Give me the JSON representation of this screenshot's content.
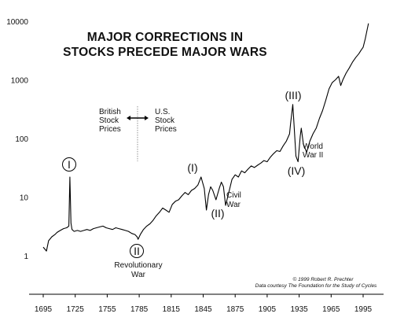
{
  "chart_data": {
    "type": "line",
    "title_lines": [
      "MAJOR CORRECTIONS IN",
      "STOCKS PRECEDE MAJOR WARS"
    ],
    "xlabel": "",
    "ylabel": "",
    "y_scale": "log",
    "xlim": [
      1695,
      2005
    ],
    "ylim": [
      1,
      10000
    ],
    "x_ticks": [
      "1695",
      "1725",
      "1755",
      "1785",
      "1815",
      "1845",
      "1875",
      "1905",
      "1935",
      "1965",
      "1995"
    ],
    "y_ticks": [
      "1",
      "10",
      "100",
      "1000",
      "10000"
    ],
    "grid": false,
    "legend": "none",
    "series": [
      {
        "x": [
          1695,
          1698,
          1700,
          1703,
          1706,
          1708,
          1711,
          1714,
          1717,
          1719,
          1720,
          1721,
          1722,
          1724,
          1727,
          1730,
          1733,
          1736,
          1739,
          1742,
          1745,
          1748,
          1751,
          1754,
          1757,
          1760,
          1763,
          1766,
          1769,
          1772,
          1775,
          1778,
          1781,
          1783,
          1784,
          1786,
          1789,
          1792,
          1795,
          1798,
          1801,
          1804,
          1807,
          1810,
          1813,
          1816,
          1819,
          1822,
          1825,
          1828,
          1831,
          1834,
          1837,
          1840,
          1843,
          1846,
          1848,
          1850,
          1852,
          1854,
          1857,
          1860,
          1862,
          1864,
          1866,
          1869,
          1872,
          1875,
          1878,
          1881,
          1884,
          1887,
          1890,
          1893,
          1896,
          1899,
          1902,
          1905,
          1908,
          1911,
          1914,
          1917,
          1920,
          1923,
          1926,
          1927,
          1928,
          1929,
          1930,
          1932,
          1934,
          1936,
          1937,
          1939,
          1942,
          1945,
          1948,
          1951,
          1954,
          1957,
          1960,
          1963,
          1966,
          1969,
          1972,
          1974,
          1976,
          1979,
          1982,
          1985,
          1988,
          1991,
          1993,
          1995,
          1997,
          1999,
          2000
        ],
        "values": [
          1.4,
          1.2,
          1.8,
          2.1,
          2.3,
          2.5,
          2.7,
          2.9,
          3.0,
          3.2,
          22,
          3.6,
          2.8,
          2.6,
          2.7,
          2.6,
          2.7,
          2.8,
          2.7,
          2.9,
          3.0,
          3.1,
          3.2,
          3.0,
          2.9,
          2.8,
          3.0,
          2.9,
          2.8,
          2.7,
          2.6,
          2.4,
          2.3,
          2.1,
          1.9,
          2.3,
          2.8,
          3.2,
          3.5,
          4.0,
          4.8,
          5.5,
          6.5,
          6.0,
          5.5,
          7.5,
          8.5,
          9.0,
          10.5,
          12,
          11,
          13,
          14,
          16,
          22,
          14,
          6.0,
          11,
          15,
          13,
          9,
          14,
          18,
          15,
          7.2,
          12,
          20,
          24,
          22,
          28,
          26,
          30,
          34,
          32,
          35,
          38,
          42,
          40,
          48,
          55,
          62,
          60,
          75,
          90,
          120,
          180,
          260,
          380,
          200,
          50,
          40,
          110,
          150,
          80,
          58,
          90,
          120,
          150,
          220,
          300,
          450,
          700,
          900,
          1000,
          1150,
          800,
          1000,
          1300,
          1600,
          2000,
          2400,
          2800,
          3200,
          3600,
          5000,
          7500,
          9200
        ]
      }
    ],
    "annotations": {
      "british_lines": [
        "British",
        "Stock",
        "Prices"
      ],
      "us_lines": [
        "U.S.",
        "Stock",
        "Prices"
      ],
      "wave_labels": [
        "I",
        "II",
        "(I)",
        "(II)",
        "(III)",
        "(IV)"
      ],
      "revolutionary_war_lines": [
        "Revolutionary",
        "War"
      ],
      "civil_war_lines": [
        "Civil",
        "War"
      ],
      "world_war_lines": [
        "World",
        "War II"
      ],
      "credit_lines": [
        "© 1999 Robert R. Prechter",
        "Data courtesy The Foundation for the Study of Cycles"
      ]
    }
  }
}
